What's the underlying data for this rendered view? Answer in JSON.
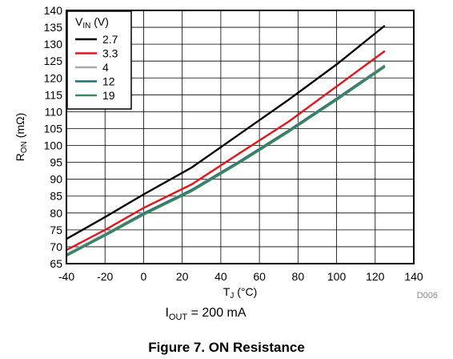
{
  "chart_data": {
    "type": "line",
    "xlabel": "T",
    "xlabel_sub": "J",
    "xlabel_unit": " (°C)",
    "ylabel": "R",
    "ylabel_sub": "ON",
    "ylabel_unit": " (mΩ)",
    "xlim": [
      -40,
      140
    ],
    "ylim": [
      65,
      140
    ],
    "xticks": [
      "-40",
      "-20",
      "0",
      "20",
      "40",
      "60",
      "80",
      "100",
      "120",
      "140"
    ],
    "yticks": [
      "65",
      "70",
      "75",
      "80",
      "85",
      "90",
      "95",
      "100",
      "105",
      "110",
      "115",
      "120",
      "125",
      "130",
      "135",
      "140"
    ],
    "grid": true,
    "legend_title": "V",
    "legend_title_sub": "IN",
    "legend_title_unit": " (V)",
    "legend_position": "top-left",
    "watermark": "D006",
    "series": [
      {
        "name": "2.7",
        "color": "#000000",
        "x": [
          -40,
          -20,
          0,
          25,
          50,
          75,
          100,
          125
        ],
        "y": [
          72.3,
          78.8,
          85.5,
          93.5,
          103.5,
          113.5,
          124.0,
          135.5
        ]
      },
      {
        "name": "3.3",
        "color": "#e8141b",
        "x": [
          -40,
          -20,
          0,
          25,
          50,
          75,
          100,
          125
        ],
        "y": [
          69.0,
          75.0,
          81.5,
          88.5,
          97.8,
          107.0,
          117.5,
          128.0
        ]
      },
      {
        "name": "4",
        "color": "#a8a8a8",
        "x": [
          -40,
          -20,
          0,
          25,
          50,
          75,
          100,
          125
        ],
        "y": [
          67.8,
          73.8,
          80.0,
          87.0,
          95.5,
          104.5,
          114.0,
          123.8
        ]
      },
      {
        "name": "12",
        "color": "#1f6f7a",
        "x": [
          -40,
          -20,
          0,
          25,
          50,
          75,
          100,
          125
        ],
        "y": [
          67.5,
          73.5,
          79.8,
          86.8,
          95.3,
          104.3,
          113.8,
          123.5
        ]
      },
      {
        "name": "19",
        "color": "#3a8a5e",
        "x": [
          -40,
          -20,
          0,
          25,
          50,
          75,
          100,
          125
        ],
        "y": [
          67.3,
          73.3,
          79.5,
          86.5,
          95.0,
          104.0,
          113.5,
          123.3
        ]
      }
    ]
  },
  "conditions": {
    "label": "I",
    "label_sub": "OUT",
    "label_rest": " = 200 mA"
  },
  "figure_caption": "Figure 7. ON Resistance"
}
